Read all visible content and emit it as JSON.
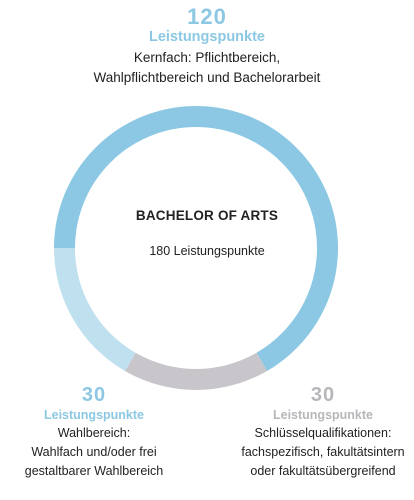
{
  "colors": {
    "core": "#8cc8e3",
    "elective": "#bfe0ee",
    "key_qualifications": "#c8c6cb",
    "elective_text": "#8cc8e3",
    "key_text": "#b8b6bb"
  },
  "center": {
    "title": "BACHELOR OF ARTS",
    "total": "180 Leistungspunkte"
  },
  "segments": {
    "core": {
      "value": "120",
      "unit": "Leistungspunkte",
      "desc_line1": "Kernfach: Pflichtbereich,",
      "desc_line2": "Wahlpflichtbereich und Bachelorarbeit"
    },
    "elective": {
      "value": "30",
      "unit": "Leistungspunkte",
      "desc_line1": "Wahlbereich:",
      "desc_line2": "Wahlfach und/oder frei",
      "desc_line3": "gestaltbarer Wahlbereich"
    },
    "key_qualifications": {
      "value": "30",
      "unit": "Leistungspunkte",
      "desc_line1": "Schlüsselqualifikationen:",
      "desc_line2": "fachspezifisch, fakultätsintern",
      "desc_line3": "oder fakultätsübergreifend"
    }
  },
  "chart_data": {
    "type": "pie",
    "title": "BACHELOR OF ARTS",
    "subtitle": "180 Leistungspunkte",
    "categories": [
      "Kernfach: Pflichtbereich, Wahlpflichtbereich und Bachelorarbeit",
      "Schlüsselqualifikationen: fachspezifisch, fakultätsintern oder fakultätsübergreifend",
      "Wahlbereich: Wahlfach und/oder frei gestaltbarer Wahlbereich"
    ],
    "values": [
      120,
      30,
      30
    ],
    "donut": true
  }
}
